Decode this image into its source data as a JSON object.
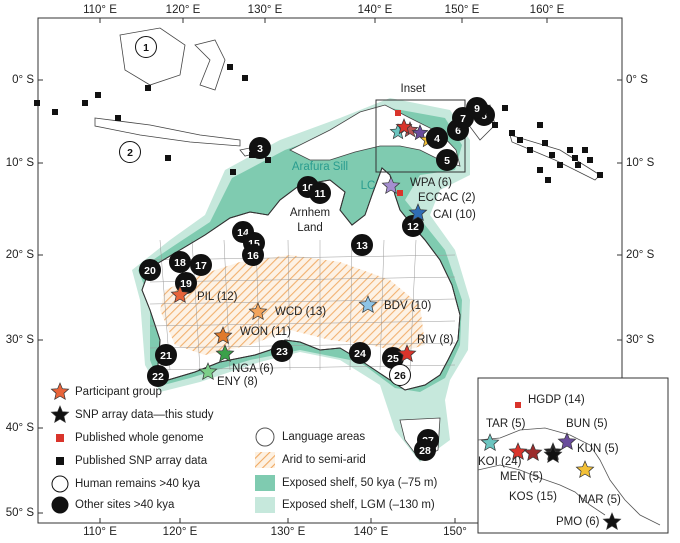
{
  "axes": {
    "top": [
      "110° E",
      "120° E",
      "130° E",
      "140° E",
      "150° E",
      "160° E"
    ],
    "bottom": [
      "110° E",
      "120° E",
      "130° E",
      "140° E",
      "150°"
    ],
    "left": [
      "0° S",
      "10° S",
      "20° S",
      "30° S",
      "40° S",
      "50° S"
    ],
    "right": [
      "0° S",
      "10° S",
      "20° S",
      "30° S"
    ]
  },
  "map_labels": {
    "inset": "Inset",
    "arafura_sill": "Arafura Sill",
    "arnhem": "Arnhem",
    "land": "Land",
    "lc": "LC"
  },
  "sites": [
    "1",
    "2",
    "3",
    "4",
    "5",
    "6",
    "7",
    "8",
    "9",
    "10",
    "11",
    "12",
    "13",
    "14",
    "15",
    "16",
    "17",
    "18",
    "19",
    "20",
    "21",
    "22",
    "23",
    "24",
    "25",
    "26",
    "27",
    "28"
  ],
  "groups": [
    "WPA (6)",
    "ECCAC (2)",
    "CAI (10)",
    "PIL (12)",
    "WCD (13)",
    "WON (11)",
    "NGA (6)",
    "ENY (8)",
    "BDV (10)",
    "RIV (8)"
  ],
  "inset": {
    "groups": [
      "HGDP (14)",
      "TAR (5)",
      "BUN (5)",
      "KUN (5)",
      "KOI (24)",
      "MEN (5)",
      "KOS (15)",
      "MAR (5)",
      "PMO (6)"
    ]
  },
  "legend": {
    "markers": [
      "Participant group",
      "SNP array data—this study",
      "Published whole genome",
      "Published SNP array data",
      "Human remains >40 kya",
      "Other sites >40 kya"
    ],
    "areas": [
      "Language areas",
      "Arid to semi-arid",
      "Exposed shelf, 50 kya (–75 m)",
      "Exposed shelf, LGM (–130 m)"
    ]
  }
}
